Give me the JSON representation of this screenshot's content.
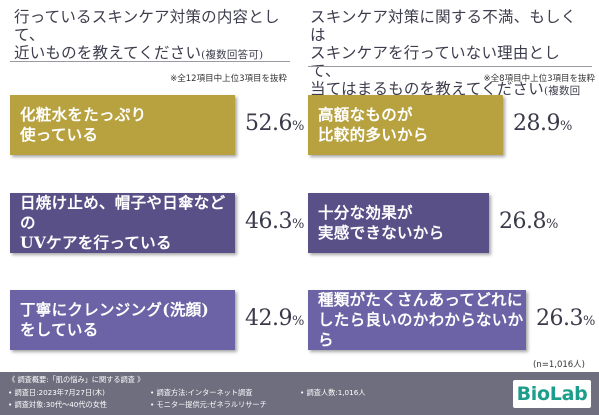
{
  "chart_data": [
    {
      "type": "bar",
      "title": "行っているスキンケア対策の内容として、\n近いものを教えてください",
      "title_suffix": "(複数回答可)",
      "note": "※全12項目中上位3項目を抜粋",
      "categories": [
        "化粧水をたっぷり\n使っている",
        "日焼け止め、帽子や日傘などの\nUVケアを行っている",
        "丁寧にクレンジング(洗顔)\nをしている"
      ],
      "values": [
        52.6,
        46.3,
        42.9
      ],
      "value_labels": [
        "52.6",
        "46.3",
        "42.9"
      ],
      "unit": "%",
      "bar_colors": [
        "#b7a23f",
        "#5a5088",
        "#6b63a5"
      ]
    },
    {
      "type": "bar",
      "title": "スキンケア対策に関する不満、もしくは\nスキンケアを行っていない理由として、\n当てはまるものを教えてください",
      "title_suffix": "(複数回答可)",
      "note": "※全8項目中上位3項目を抜粋",
      "categories": [
        "高額なものが\n比較的多いから",
        "十分な効果が\n実感できないから",
        "種類がたくさんあってどれに\nしたら良いのかわからないから"
      ],
      "values": [
        28.9,
        26.8,
        26.3
      ],
      "value_labels": [
        "28.9",
        "26.8",
        "26.3"
      ],
      "unit": "%",
      "bar_colors": [
        "#b7a23f",
        "#5a5088",
        "#6b63a5"
      ]
    }
  ],
  "sample_note": "(n=1,016人)",
  "footer": {
    "col1": [
      "《 調査概要:「肌の悩み」に関する調査 》",
      "• 調査日:2023年7月27日(木)",
      "• 調査対象:30代〜40代の女性"
    ],
    "col2": [
      "• 調査方法:インターネット調査",
      "• モニター提供元:ゼネラルリサーチ"
    ],
    "col3": [
      "• 調査人数:1,016人"
    ],
    "logo": "BioLab"
  }
}
